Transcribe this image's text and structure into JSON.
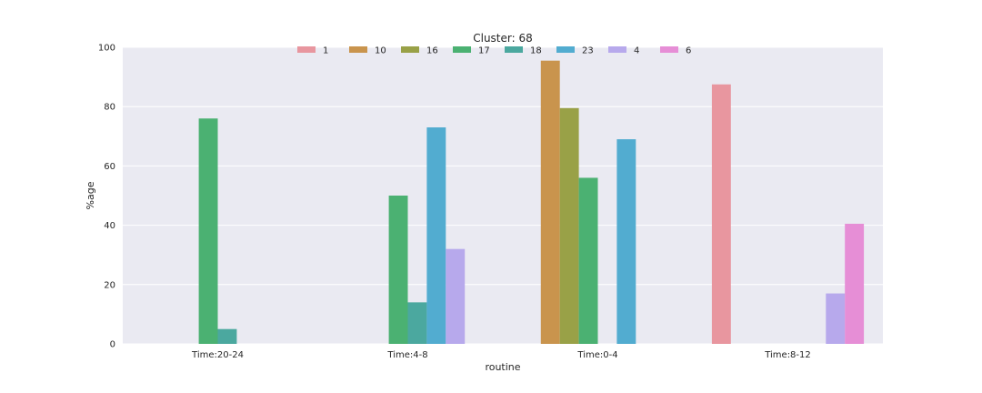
{
  "chart_data": {
    "type": "bar",
    "title": "Cluster: 68",
    "xlabel": "routine",
    "ylabel": "%age",
    "ylim": [
      0,
      100
    ],
    "yticks": [
      0,
      20,
      40,
      60,
      80,
      100
    ],
    "grid": true,
    "legend_position": "top-center",
    "categories": [
      "Time:20-24",
      "Time:4-8",
      "Time:0-4",
      "Time:8-12"
    ],
    "series": [
      {
        "name": "1",
        "color": "#e8969f",
        "values": [
          null,
          null,
          null,
          87.5
        ]
      },
      {
        "name": "10",
        "color": "#c9944d",
        "values": [
          null,
          null,
          95.5,
          null
        ]
      },
      {
        "name": "16",
        "color": "#99a147",
        "values": [
          null,
          null,
          79.5,
          null
        ]
      },
      {
        "name": "17",
        "color": "#4bb172",
        "values": [
          76,
          50,
          56,
          null
        ]
      },
      {
        "name": "18",
        "color": "#4ba89f",
        "values": [
          5,
          14,
          null,
          null
        ]
      },
      {
        "name": "23",
        "color": "#52acd0",
        "values": [
          null,
          73,
          69,
          null
        ]
      },
      {
        "name": "4",
        "color": "#b7a9ec",
        "values": [
          null,
          32,
          null,
          17
        ]
      },
      {
        "name": "6",
        "color": "#e68ed6",
        "values": [
          null,
          null,
          null,
          40.5
        ]
      }
    ]
  }
}
